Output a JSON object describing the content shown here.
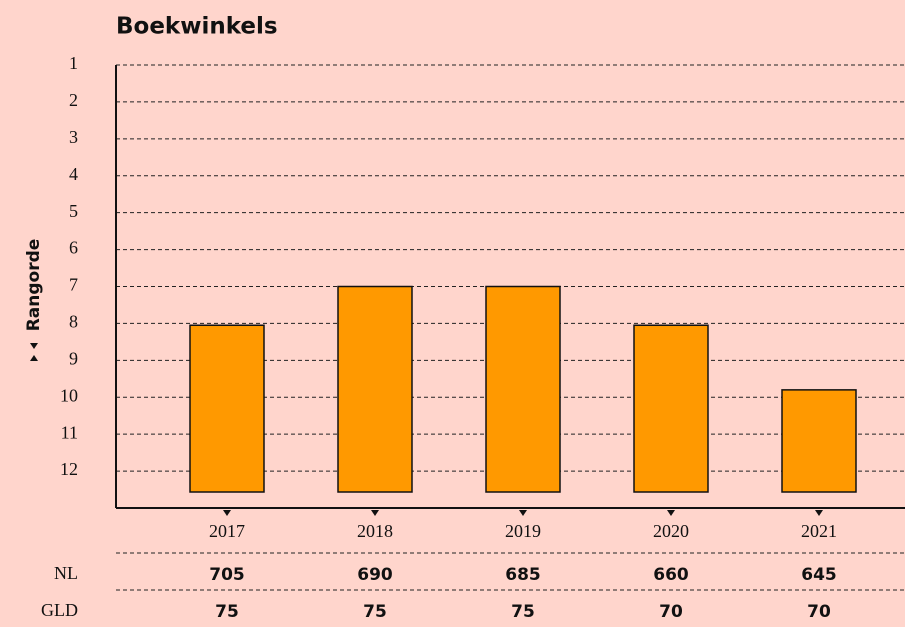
{
  "chart_data": {
    "type": "bar",
    "title": "Boekwinkels",
    "y_label": "Rangorde",
    "categories": [
      "2017",
      "2018",
      "2019",
      "2020",
      "2021"
    ],
    "values": [
      8.05,
      7.0,
      7.0,
      8.05,
      9.8
    ],
    "color": "#ff9900",
    "ylim": [
      1,
      13
    ],
    "y_inverted": true,
    "yticks": [
      1,
      2,
      3,
      4,
      5,
      6,
      7,
      8,
      9,
      10,
      11,
      12
    ],
    "grid": true,
    "table": {
      "rows": [
        {
          "label": "NL",
          "values": [
            705,
            690,
            685,
            660,
            645
          ]
        },
        {
          "label": "GLD",
          "values": [
            75,
            75,
            75,
            70,
            70
          ]
        }
      ]
    }
  }
}
